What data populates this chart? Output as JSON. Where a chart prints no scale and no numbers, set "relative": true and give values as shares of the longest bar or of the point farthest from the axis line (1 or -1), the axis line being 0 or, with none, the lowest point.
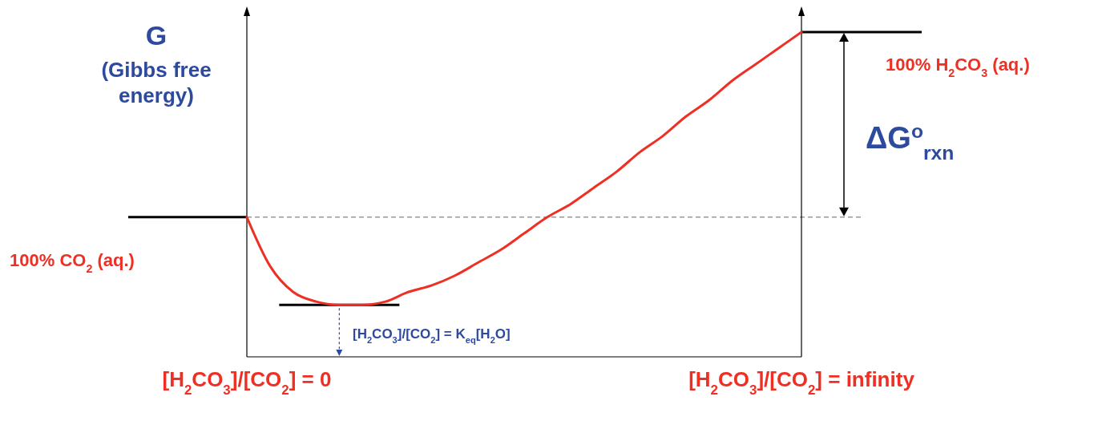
{
  "chart_data": {
    "type": "line",
    "relative": true,
    "ylabel": "G\n(Gibbs free\nenergy)",
    "categories": [
      "[H$_{2}$CO$_{3}$]/[CO$_{2}$] = 0",
      null,
      null,
      null,
      null,
      null,
      null,
      null,
      null,
      null,
      null,
      null,
      null,
      null,
      null,
      null,
      null,
      null,
      null,
      null,
      null,
      null,
      null,
      null,
      "[H$_{2}$CO$_{3}$]/[CO$_{2}$] = infinity"
    ],
    "series": [
      {
        "color": "#ee3024",
        "values": [
          0.43,
          0.28,
          0.2,
          0.17,
          0.16,
          0.16,
          0.17,
          0.2,
          0.22,
          0.25,
          0.29,
          0.33,
          0.38,
          0.43,
          0.47,
          0.52,
          0.57,
          0.63,
          0.68,
          0.74,
          0.79,
          0.85,
          0.9,
          0.95,
          1
        ]
      }
    ],
    "ref_lines": [
      {
        "axis": "y",
        "value": 0.43,
        "color": "#999999",
        "line_style": "dashed"
      },
      {
        "axis": "y",
        "value": 0.16,
        "color": "#000000",
        "line_style": "solid"
      }
    ],
    "annotations": [
      "100% CO$_{2}$ (aq.)",
      "100% H$_{2}$CO$_{3}$ (aq.)",
      "ΔG$^{o}$$_{rxn}$",
      "[H$_{2}$CO$_{3}$]/[CO$_{2}$] = K$_{eq}$[H$_{2}$O]"
    ],
    "marker": "none",
    "line_style": "solid"
  }
}
